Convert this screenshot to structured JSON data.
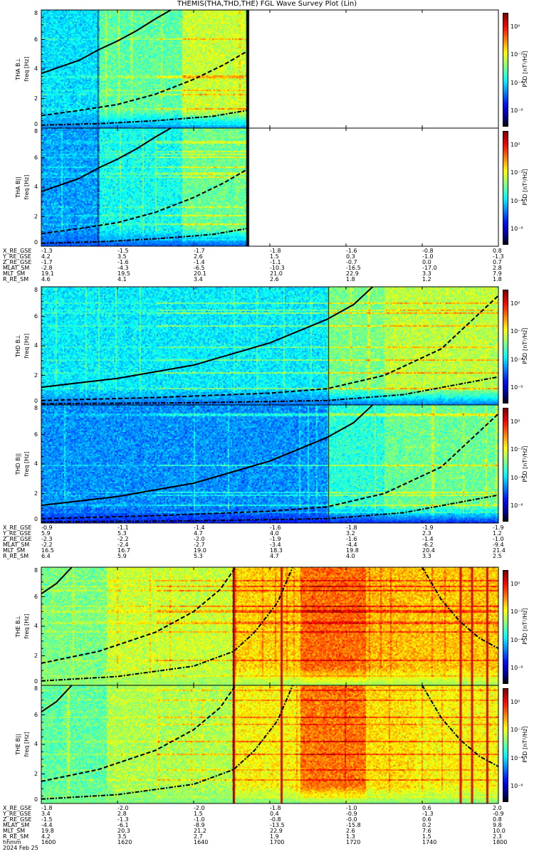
{
  "title": "THEMIS(THA,THD,THE) FGL Wave Survey Plot (Lin)",
  "chart_data": {
    "type": "heatmap",
    "title": "THEMIS(THA,THD,THE) FGL Wave Survey Plot (Lin)",
    "xlabel": "hhmm",
    "x_range_min": [
      0,
      120
    ],
    "x_start": "1600",
    "date": "2024 Feb 25",
    "ylabel": "freq [Hz]",
    "ylim": [
      0,
      8
    ],
    "yticks": [
      "0",
      "2",
      "4",
      "6",
      "8"
    ],
    "colorbar": {
      "label": "PSD [nT²/Hz]",
      "log_range": [
        -7,
        1
      ],
      "ticks": [
        {
          "exp": 0,
          "text": "10⁰"
        },
        {
          "exp": -2,
          "text": "10⁻²"
        },
        {
          "exp": -4,
          "text": "10⁻⁴"
        },
        {
          "exp": -6,
          "text": "10⁻⁶"
        }
      ]
    },
    "probes": [
      {
        "name": "THA",
        "data_end_min": 54,
        "panels": [
          {
            "label": "THA B⊥",
            "segments": [
              [
                0,
                15,
                -3.9
              ],
              [
                15,
                37,
                -3.0
              ],
              [
                37,
                54,
                -2.2
              ]
            ],
            "low_freq_level": -4.6
          },
          {
            "label": "THA B||",
            "segments": [
              [
                0,
                15,
                -4.4
              ],
              [
                15,
                37,
                -3.6
              ],
              [
                37,
                54,
                -2.9
              ]
            ],
            "low_freq_level": -5.0
          }
        ],
        "dark_lines_min": [
          15,
          54
        ],
        "curves": [
          {
            "style": "solid",
            "points": [
              [
                0,
                3.7
              ],
              [
                10,
                4.6
              ],
              [
                15,
                5.3
              ],
              [
                20,
                5.9
              ],
              [
                25,
                6.6
              ],
              [
                30,
                7.4
              ],
              [
                34,
                8.0
              ]
            ]
          },
          {
            "style": "dashed",
            "points": [
              [
                0,
                0.85
              ],
              [
                10,
                1.2
              ],
              [
                20,
                1.6
              ],
              [
                30,
                2.3
              ],
              [
                40,
                3.3
              ],
              [
                48,
                4.3
              ],
              [
                54,
                5.2
              ]
            ]
          },
          {
            "style": "dashdot",
            "points": [
              [
                0,
                0.2
              ],
              [
                15,
                0.3
              ],
              [
                30,
                0.5
              ],
              [
                45,
                0.8
              ],
              [
                54,
                1.2
              ]
            ]
          }
        ],
        "ephemeris": [
          {
            "label": "X_RE_GSE",
            "values": [
              "-1.3",
              "-1.5",
              "-1.7",
              "-1.8",
              "-1.6",
              "-0.8",
              "0.8"
            ]
          },
          {
            "label": "Y_RE_GSE",
            "values": [
              "4.2",
              "3.5",
              "2.6",
              "1.5",
              "0.3",
              "-1.0",
              "-1.3"
            ]
          },
          {
            "label": "Z_RE_GSE",
            "values": [
              "-1.7",
              "-1.6",
              "-1.4",
              "-1.1",
              "-0.7",
              "0.0",
              "0.7"
            ]
          },
          {
            "label": "MLAT_SM",
            "values": [
              "-2.8",
              "-4.3",
              "-6.5",
              "-10.3",
              "-16.5",
              "-17.0",
              "2.8"
            ]
          },
          {
            "label": "MLT_SM",
            "values": [
              "19.1",
              "19.5",
              "20.1",
              "21.0",
              "22.9",
              "3.3",
              "7.9"
            ]
          },
          {
            "label": "R_RE_SM",
            "values": [
              "4.6",
              "4.1",
              "3.4",
              "2.6",
              "1.8",
              "1.2",
              "1.8"
            ]
          }
        ]
      },
      {
        "name": "THD",
        "data_end_min": 120,
        "panels": [
          {
            "label": "THD B⊥",
            "segments": [
              [
                0,
                75,
                -3.8
              ],
              [
                75,
                90,
                -2.8
              ],
              [
                90,
                120,
                -2.3
              ]
            ],
            "low_freq_level": -4.8
          },
          {
            "label": "THD B||",
            "segments": [
              [
                0,
                75,
                -4.5
              ],
              [
                75,
                90,
                -3.4
              ],
              [
                90,
                120,
                -2.9
              ]
            ],
            "low_freq_level": -5.4
          }
        ],
        "dark_lines_min": [
          75.5
        ],
        "curves": [
          {
            "style": "solid",
            "points": [
              [
                0,
                1.2
              ],
              [
                20,
                1.8
              ],
              [
                40,
                2.7
              ],
              [
                60,
                4.2
              ],
              [
                75,
                5.8
              ],
              [
                82,
                6.8
              ],
              [
                87,
                8.0
              ]
            ]
          },
          {
            "style": "dashed",
            "points": [
              [
                0,
                0.3
              ],
              [
                30,
                0.5
              ],
              [
                60,
                0.8
              ],
              [
                75,
                1.1
              ],
              [
                90,
                2.0
              ],
              [
                105,
                3.8
              ],
              [
                120,
                7.4
              ]
            ]
          },
          {
            "style": "dashdot",
            "points": [
              [
                0,
                0.08
              ],
              [
                40,
                0.15
              ],
              [
                75,
                0.3
              ],
              [
                95,
                0.7
              ],
              [
                120,
                1.9
              ]
            ]
          }
        ],
        "ephemeris": [
          {
            "label": "X_RE_GSE",
            "values": [
              "-0.9",
              "-1.1",
              "-1.4",
              "-1.6",
              "-1.8",
              "-1.9",
              "-1.9"
            ]
          },
          {
            "label": "Y_RE_GSE",
            "values": [
              "5.9",
              "5.3",
              "4.7",
              "4.0",
              "3.2",
              "2.3",
              "1.2"
            ]
          },
          {
            "label": "Z_RE_GSE",
            "values": [
              "-2.3",
              "-2.2",
              "-2.0",
              "-1.9",
              "-1.6",
              "-1.4",
              "-1.0"
            ]
          },
          {
            "label": "MLAT_SM",
            "values": [
              "-2.2",
              "-2.4",
              "-2.7",
              "-3.4",
              "-4.4",
              "-6.2",
              "-9.4"
            ]
          },
          {
            "label": "MLT_SM",
            "values": [
              "16.5",
              "16.7",
              "19.0",
              "18.3",
              "19.8",
              "20.4",
              "21.4"
            ]
          },
          {
            "label": "R_RE_SM",
            "values": [
              "6.4",
              "5.9",
              "5.3",
              "4.7",
              "4.0",
              "3.3",
              "2.5"
            ]
          }
        ]
      },
      {
        "name": "THE",
        "data_end_min": 120,
        "panels": [
          {
            "label": "THE B⊥",
            "segments": [
              [
                0,
                17,
                -2.8
              ],
              [
                17,
                50,
                -2.2
              ],
              [
                50,
                68,
                -1.5
              ],
              [
                68,
                85,
                -0.7
              ],
              [
                85,
                98,
                -1.3
              ],
              [
                98,
                120,
                -1.4
              ]
            ],
            "low_freq_level": -2.6
          },
          {
            "label": "THE B||",
            "segments": [
              [
                0,
                17,
                -3.0
              ],
              [
                17,
                50,
                -2.4
              ],
              [
                50,
                68,
                -1.8
              ],
              [
                68,
                85,
                -0.8
              ],
              [
                85,
                98,
                -1.6
              ],
              [
                98,
                120,
                -1.8
              ]
            ],
            "low_freq_level": -2.8
          }
        ],
        "red_lines_min": [
          50.5,
          63,
          110,
          113,
          117
        ],
        "dark_lines_min": [
          50.5
        ],
        "curves": [
          {
            "style": "solid",
            "points": [
              [
                0,
                6.2
              ],
              [
                4,
                6.9
              ],
              [
                8,
                8.0
              ]
            ]
          },
          {
            "style": "dashed",
            "points": [
              [
                0,
                1.5
              ],
              [
                15,
                2.3
              ],
              [
                30,
                3.6
              ],
              [
                40,
                5.0
              ],
              [
                47,
                6.5
              ],
              [
                51,
                8.0
              ]
            ]
          },
          {
            "style": "dashdot",
            "points": [
              [
                0,
                0.3
              ],
              [
                20,
                0.6
              ],
              [
                40,
                1.3
              ],
              [
                50.5,
                2.3
              ],
              [
                56,
                3.6
              ],
              [
                62,
                5.6
              ],
              [
                66,
                8.0
              ]
            ]
          },
          {
            "style": "dashdot",
            "points": [
              [
                100,
                8.0
              ],
              [
                105,
                5.8
              ],
              [
                110,
                4.3
              ],
              [
                115,
                3.2
              ],
              [
                120,
                2.5
              ]
            ]
          }
        ],
        "ephemeris": [
          {
            "label": "X_RE_GSE",
            "values": [
              "-1.8",
              "-2.0",
              "-2.0",
              "-1.8",
              "-1.0",
              "0.6",
              "2.0"
            ]
          },
          {
            "label": "Y_RE_GSE",
            "values": [
              "3.4",
              "2.8",
              "1.5",
              "0.4",
              "-0.9",
              "-1.3",
              "-0.9"
            ]
          },
          {
            "label": "Z_RE_GSE",
            "values": [
              "-1.5",
              "-1.3",
              "-1.0",
              "-0.8",
              "-0.0",
              "0.6",
              "0.8"
            ]
          },
          {
            "label": "MLAT_SM",
            "values": [
              "-4.4",
              "-6.1",
              "-8.9",
              "-13.5",
              "-15.8",
              "0.2",
              "9.8"
            ]
          },
          {
            "label": "MLT_SM",
            "values": [
              "19.8",
              "20.3",
              "21.2",
              "22.9",
              "2.6",
              "7.6",
              "10.0"
            ]
          },
          {
            "label": "R_RE_SM",
            "values": [
              "4.2",
              "3.5",
              "2.7",
              "1.9",
              "1.3",
              "1.5",
              "2.3"
            ]
          },
          {
            "label": "hhmm",
            "values": [
              "1600",
              "1620",
              "1640",
              "1700",
              "1720",
              "1740",
              "1800"
            ]
          }
        ],
        "date_label": "2024 Feb 25"
      }
    ]
  }
}
